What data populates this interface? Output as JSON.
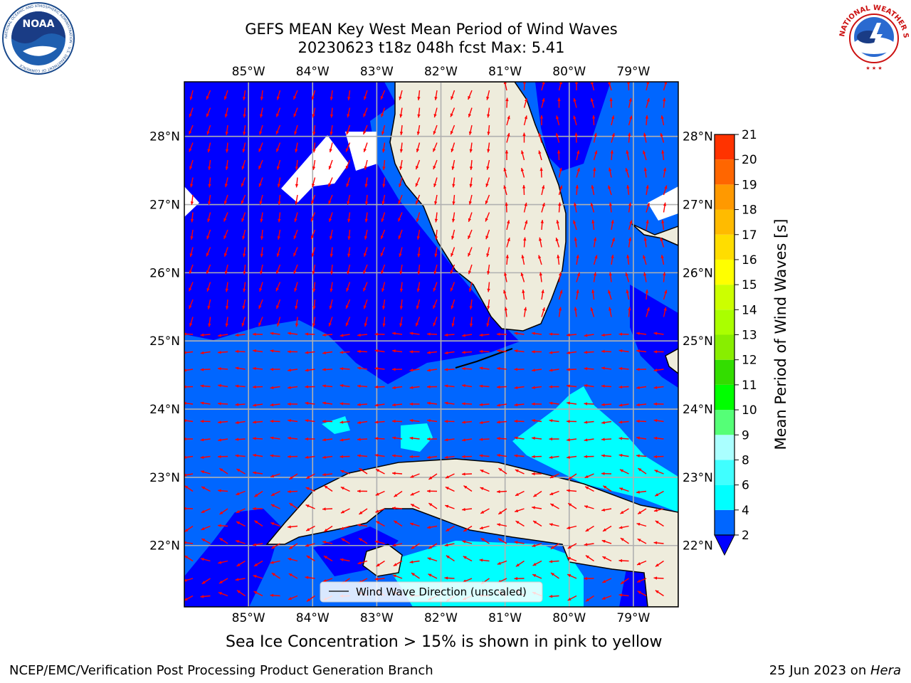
{
  "title": {
    "line1": "GEFS MEAN Key West Mean Period of Wind Waves",
    "line2": "20230623 t18z 048h fcst   Max: 5.41"
  },
  "logos": {
    "left": {
      "text": "NOAA",
      "ring_text": "NATIONAL OCEANIC AND ATMOSPHERIC ADMINISTRATION · U.S. DEPARTMENT OF COMMERCE"
    },
    "right": {
      "ring_text": "NATIONAL WEATHER SERVICE"
    }
  },
  "map": {
    "lon_labels": [
      "85°W",
      "84°W",
      "83°W",
      "82°W",
      "81°W",
      "80°W",
      "79°W"
    ],
    "lat_labels": [
      "28°N",
      "27°N",
      "26°N",
      "25°N",
      "24°N",
      "23°N",
      "22°N"
    ],
    "lon_range": [
      -86.0,
      -78.3
    ],
    "lat_range": [
      21.1,
      28.8
    ],
    "legend_label": "Wind Wave Direction (unscaled)",
    "arrow_color": "#ff0000",
    "land_color": "#eeecdc"
  },
  "colorbar": {
    "label": "Mean Period of Wind Waves [s]",
    "ticks": [
      "2",
      "4",
      "6",
      "8",
      "9",
      "10",
      "11",
      "12",
      "13",
      "14",
      "15",
      "16",
      "17",
      "18",
      "19",
      "20",
      "21"
    ],
    "colors": [
      "#0066ff",
      "#00ffff",
      "#40ffff",
      "#80ffff",
      "#aaffff",
      "#55ff77",
      "#00ff00",
      "#33dd00",
      "#88ee00",
      "#aaff00",
      "#ccff00",
      "#ffff00",
      "#ffdd00",
      "#ffbb00",
      "#ff9900",
      "#ff6600",
      "#ff3300",
      "#ff0000"
    ],
    "under_color": "#0000ff"
  },
  "chart_data": {
    "type": "heatmap",
    "title": "GEFS MEAN Key West Mean Period of Wind Waves",
    "subtitle": "20230623 t18z 048h fcst   Max: 5.41",
    "max_value": 5.41,
    "units": "s",
    "colorbar_levels": [
      2,
      4,
      6,
      8,
      9,
      10,
      11,
      12,
      13,
      14,
      15,
      16,
      17,
      18,
      19,
      20,
      21
    ],
    "colorbar_label": "Mean Period of Wind Waves [s]",
    "x_ticks": [
      "85°W",
      "84°W",
      "83°W",
      "82°W",
      "81°W",
      "80°W",
      "79°W"
    ],
    "y_ticks": [
      "28°N",
      "27°N",
      "26°N",
      "25°N",
      "24°N",
      "23°N",
      "22°N"
    ],
    "legend": [
      "Wind Wave Direction (unscaled)"
    ],
    "grid": true
  },
  "caption": "Sea Ice Concentration > 15% is shown in pink to yellow",
  "footer": {
    "left": "NCEP/EMC/Verification Post Processing Product Generation Branch",
    "right_prefix": "25 Jun 2023 on ",
    "right_host": "Hera"
  }
}
